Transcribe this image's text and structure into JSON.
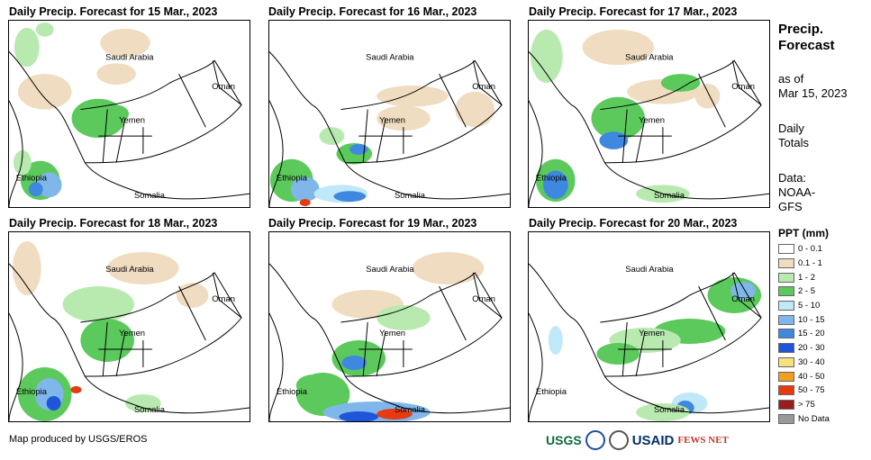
{
  "panels": [
    {
      "title": "Daily Precip. Forecast for 15 Mar., 2023"
    },
    {
      "title": "Daily Precip. Forecast for 16 Mar., 2023"
    },
    {
      "title": "Daily Precip. Forecast for 17 Mar., 2023"
    },
    {
      "title": "Daily Precip. Forecast for 18 Mar., 2023"
    },
    {
      "title": "Daily Precip. Forecast for 19 Mar., 2023"
    },
    {
      "title": "Daily Precip. Forecast for 20 Mar., 2023"
    }
  ],
  "map_labels": {
    "saudi": "Saudi Arabia",
    "oman": "Oman",
    "yemen": "Yemen",
    "ethiopia": "Ethiopia",
    "somalia": "Somalia"
  },
  "sidebar": {
    "title_line1": "Precip.",
    "title_line2": "Forecast",
    "asof_line1": "as of",
    "asof_line2": "Mar 15, 2023",
    "daily_line1": "Daily",
    "daily_line2": "Totals",
    "data_line1": "Data:",
    "data_line2": "NOAA-",
    "data_line3": "GFS"
  },
  "legend": {
    "title": "PPT (mm)",
    "items": [
      {
        "label": "0 - 0.1",
        "color": "#ffffff"
      },
      {
        "label": "0.1 - 1",
        "color": "#f0dcc0"
      },
      {
        "label": "1 - 2",
        "color": "#b8eab0"
      },
      {
        "label": "2 - 5",
        "color": "#5cc95c"
      },
      {
        "label": "5 - 10",
        "color": "#bfe8f8"
      },
      {
        "label": "10 - 15",
        "color": "#7fb7ea"
      },
      {
        "label": "15 - 20",
        "color": "#3f88e0"
      },
      {
        "label": "20 - 30",
        "color": "#1f55d8"
      },
      {
        "label": "30 - 40",
        "color": "#f7e27a"
      },
      {
        "label": "40 - 50",
        "color": "#f0a020"
      },
      {
        "label": "50 - 75",
        "color": "#e83a10"
      },
      {
        "label": "> 75",
        "color": "#9a1c1c"
      },
      {
        "label": "No Data",
        "color": "#999999"
      }
    ]
  },
  "footer": {
    "credit": "Map produced by USGS/EROS",
    "logo_usgs": "USGS",
    "logo_usaid": "USAID",
    "logo_fews": "FEWS NET"
  }
}
